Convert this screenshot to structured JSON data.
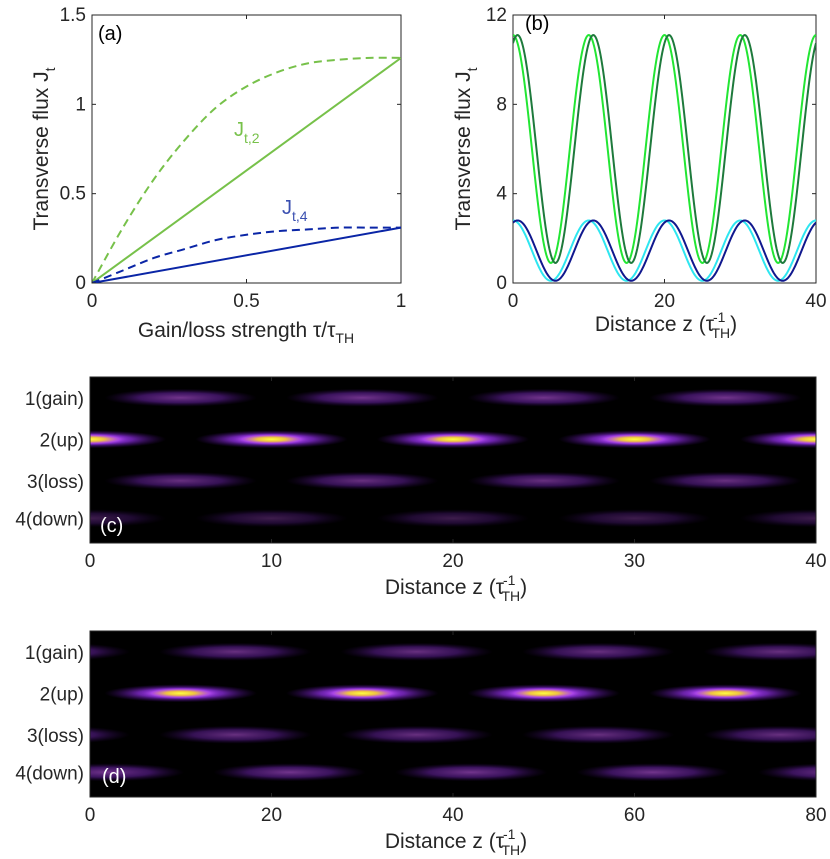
{
  "chart_data": [
    {
      "panel": "(a)",
      "type": "line",
      "xlabel": "Gain/loss strength τ/τ",
      "xlabel_sub": "TH",
      "ylabel": "Transverse flux J",
      "ylabel_sub": "t",
      "xlim": [
        0,
        1
      ],
      "ylim": [
        0,
        1.5
      ],
      "xticks": [
        "0",
        "0.5",
        "1"
      ],
      "yticks": [
        "0",
        "0.5",
        "1",
        "1.5"
      ],
      "colors": {
        "green": "#77c14a",
        "blue": "#0a25a6"
      },
      "series": [
        {
          "name": "J_t,2 solid",
          "style": "solid",
          "color": "green",
          "x": [
            0,
            1
          ],
          "y": [
            0,
            1.26
          ]
        },
        {
          "name": "J_t,2 dashed",
          "style": "dashed",
          "color": "green",
          "x": [
            0,
            0.1,
            0.2,
            0.3,
            0.4,
            0.5,
            0.6,
            0.7,
            0.8,
            0.9,
            1.0
          ],
          "y": [
            0,
            0.31,
            0.58,
            0.8,
            0.98,
            1.1,
            1.18,
            1.23,
            1.25,
            1.26,
            1.26
          ]
        },
        {
          "name": "J_t,4 solid",
          "style": "solid",
          "color": "blue",
          "x": [
            0,
            1
          ],
          "y": [
            0,
            0.31
          ]
        },
        {
          "name": "J_t,4 dashed",
          "style": "dashed",
          "color": "blue",
          "x": [
            0,
            0.1,
            0.2,
            0.3,
            0.4,
            0.5,
            0.6,
            0.7,
            0.8,
            0.9,
            1.0
          ],
          "y": [
            0,
            0.07,
            0.14,
            0.19,
            0.24,
            0.27,
            0.29,
            0.3,
            0.31,
            0.31,
            0.31
          ]
        }
      ],
      "annotations": [
        {
          "text": "J",
          "sub": "t,2",
          "color": "green"
        },
        {
          "text": "J",
          "sub": "t,4",
          "color": "blue"
        }
      ]
    },
    {
      "panel": "(b)",
      "type": "line",
      "xlabel": "Distance z (τ",
      "xlabel_sup": "-1",
      "xlabel_sub": "TH",
      "xlabel_end": ")",
      "ylabel": "Transverse flux J",
      "ylabel_sub": "t",
      "xlim": [
        0,
        40
      ],
      "ylim": [
        0,
        12
      ],
      "xticks": [
        "0",
        "20",
        "40"
      ],
      "yticks": [
        "0",
        "4",
        "8",
        "12"
      ],
      "series": [
        {
          "name": "bright green",
          "color": "#22e633",
          "mean": 6.0,
          "amp": 5.1,
          "period": 10,
          "phase": 0
        },
        {
          "name": "dark green",
          "color": "#1e7a3c",
          "mean": 6.0,
          "amp": 5.1,
          "period": 10,
          "phase": 0.6
        },
        {
          "name": "cyan",
          "color": "#2ee6f0",
          "mean": 1.45,
          "amp": 1.35,
          "period": 10,
          "phase": 0
        },
        {
          "name": "navy",
          "color": "#10188e",
          "mean": 1.45,
          "amp": 1.35,
          "period": 10,
          "phase": 0.6
        }
      ]
    },
    {
      "panel": "(c)",
      "type": "heatmap",
      "xlabel": "Distance z (τ",
      "xlabel_sup": "-1",
      "xlabel_sub": "TH",
      "xlabel_end": ")",
      "xlim": [
        0,
        40
      ],
      "xticks": [
        "0",
        "10",
        "20",
        "30",
        "40"
      ],
      "rows": [
        "1(gain)",
        "2(up)",
        "3(loss)",
        "4(down)"
      ],
      "rows_intensity": [
        0.55,
        1.0,
        0.5,
        0.3
      ],
      "period": 10,
      "row_phases": [
        5,
        0,
        5,
        0
      ]
    },
    {
      "panel": "(d)",
      "type": "heatmap",
      "xlabel": "Distance z (τ",
      "xlabel_sup": "-1",
      "xlabel_sub": "TH",
      "xlabel_end": ")",
      "xlim": [
        0,
        80
      ],
      "xticks": [
        "0",
        "20",
        "40",
        "60",
        "80"
      ],
      "rows": [
        "1(gain)",
        "2(up)",
        "3(loss)",
        "4(down)"
      ],
      "rows_intensity": [
        0.5,
        1.0,
        0.5,
        0.55
      ],
      "period": 20,
      "row_phases": [
        16,
        10,
        16,
        2
      ]
    }
  ]
}
